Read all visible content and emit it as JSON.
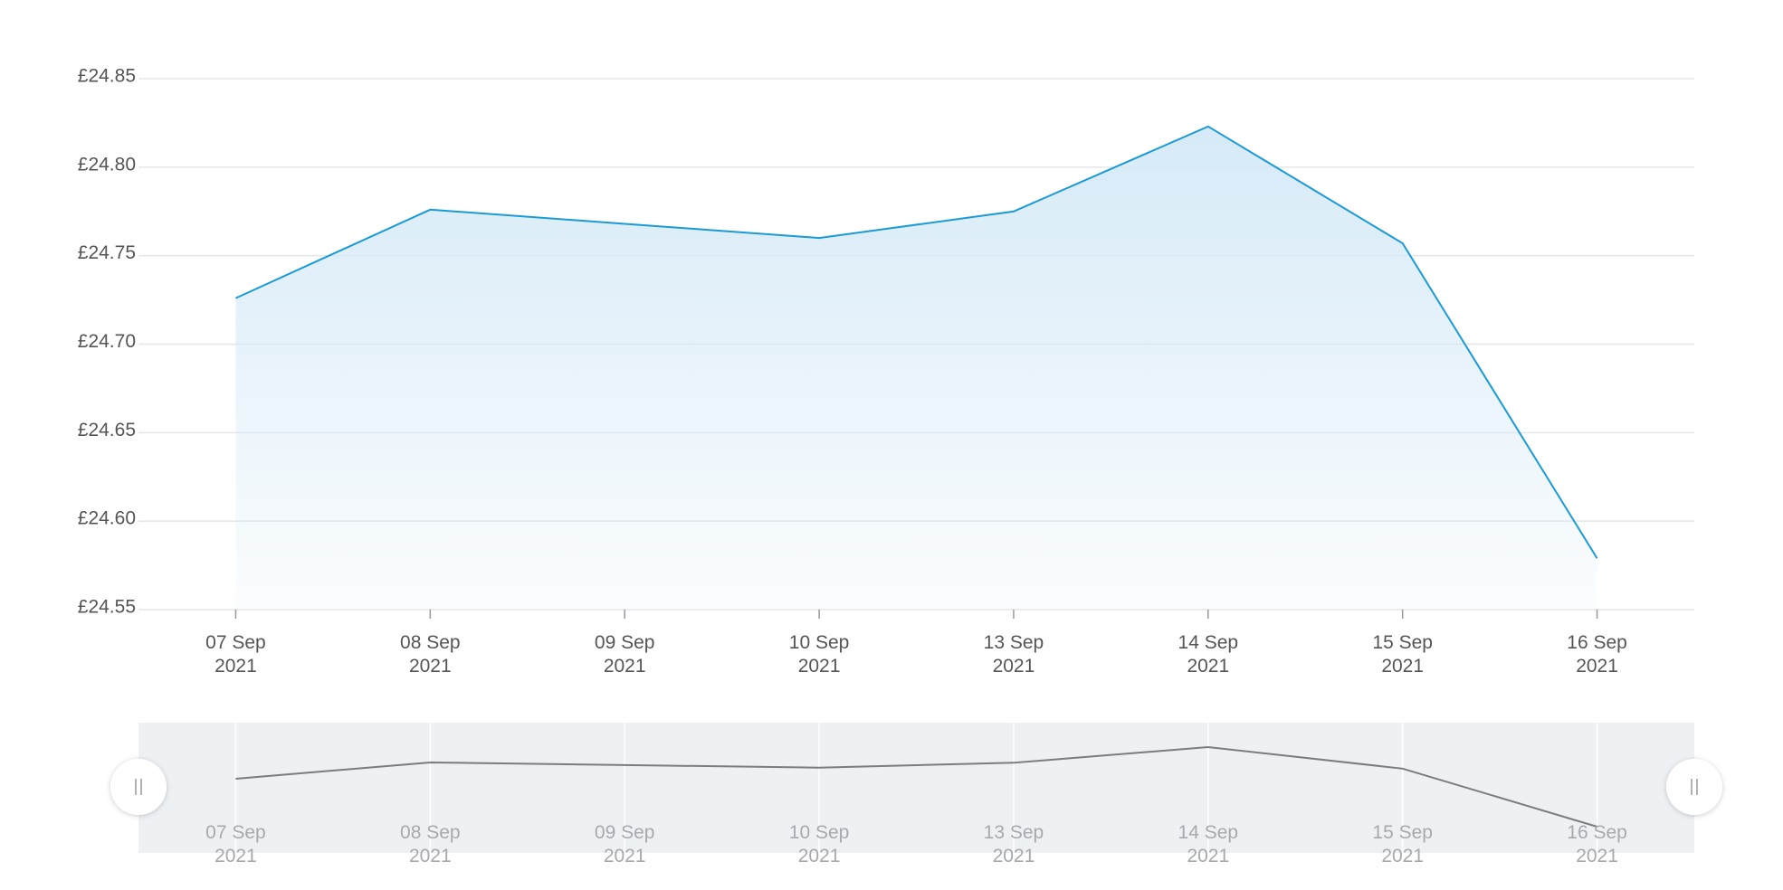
{
  "chart_data": {
    "type": "area",
    "categories": [
      "07 Sep 2021",
      "08 Sep 2021",
      "09 Sep 2021",
      "10 Sep 2021",
      "13 Sep 2021",
      "14 Sep 2021",
      "15 Sep 2021",
      "16 Sep 2021"
    ],
    "values": [
      24.726,
      24.776,
      24.768,
      24.76,
      24.775,
      24.823,
      24.757,
      24.579
    ],
    "color": "#1a9ad6",
    "navigator_color": "#7a7d80",
    "ylim": [
      24.55,
      24.85
    ],
    "yticks": [
      {
        "value": 24.55,
        "label": "£24.55"
      },
      {
        "value": 24.6,
        "label": "£24.60"
      },
      {
        "value": 24.65,
        "label": "£24.65"
      },
      {
        "value": 24.7,
        "label": "£24.70"
      },
      {
        "value": 24.75,
        "label": "£24.75"
      },
      {
        "value": 24.8,
        "label": "£24.80"
      },
      {
        "value": 24.85,
        "label": "£24.85"
      }
    ],
    "grid": true
  }
}
